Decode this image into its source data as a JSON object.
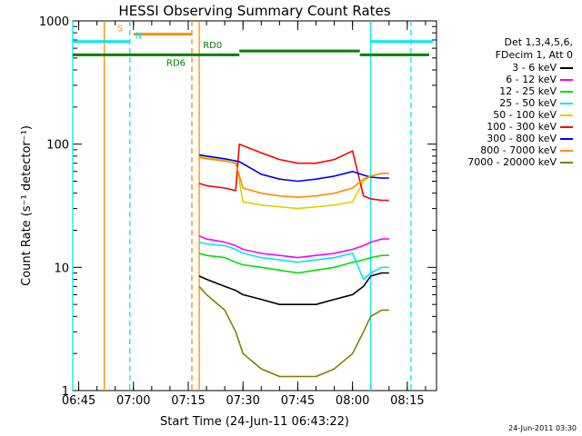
{
  "chart_data": {
    "type": "line",
    "title": "HESSI Observing Summary Count Rates",
    "xlabel": "Start Time (24-Jun-11 06:43:22)",
    "ylabel": "Count Rate (s⁻¹ detector⁻¹)",
    "y_scale": "log",
    "ylim": [
      1,
      1000
    ],
    "y_ticks": [
      {
        "value": 1,
        "label": "1"
      },
      {
        "value": 10,
        "label": "10"
      },
      {
        "value": 100,
        "label": "100"
      },
      {
        "value": 1000,
        "label": "1000"
      }
    ],
    "xlim": [
      "06:43:22",
      "08:23:00"
    ],
    "x_ticks": [
      "06:45",
      "07:00",
      "07:15",
      "07:30",
      "07:45",
      "08:00",
      "08:15"
    ],
    "grid": false,
    "legend_position": "right",
    "legend_header": [
      "Det 1,3,4,5,6,",
      "FDecim 1, Att 0"
    ],
    "series": [
      {
        "name": "3 - 6 keV",
        "color": "#000000",
        "x": [
          "07:18",
          "07:20",
          "07:25",
          "07:28",
          "07:30",
          "07:35",
          "07:40",
          "07:45",
          "07:50",
          "07:55",
          "08:00",
          "08:03",
          "08:05",
          "08:08",
          "08:10"
        ],
        "y": [
          8.5,
          8,
          7,
          6.5,
          6,
          5.5,
          5,
          5,
          5,
          5.5,
          6,
          7,
          8.5,
          9,
          9
        ]
      },
      {
        "name": "6 - 12 keV",
        "color": "#ff00ff",
        "x": [
          "07:18",
          "07:20",
          "07:25",
          "07:28",
          "07:30",
          "07:35",
          "07:40",
          "07:45",
          "07:50",
          "07:55",
          "08:00",
          "08:03",
          "08:05",
          "08:08",
          "08:10"
        ],
        "y": [
          18,
          17,
          16,
          15,
          14,
          13,
          12.5,
          12,
          12.5,
          13,
          14,
          15,
          16,
          17,
          17
        ]
      },
      {
        "name": "12 - 25 keV",
        "color": "#00e000",
        "x": [
          "07:18",
          "07:20",
          "07:25",
          "07:28",
          "07:30",
          "07:35",
          "07:40",
          "07:45",
          "07:50",
          "07:55",
          "08:00",
          "08:03",
          "08:05",
          "08:08",
          "08:10"
        ],
        "y": [
          13,
          12.5,
          12,
          11,
          10.5,
          10,
          9.5,
          9,
          9.5,
          10,
          11,
          11.5,
          12,
          12.5,
          12.5
        ]
      },
      {
        "name": "25 - 50 keV",
        "color": "#00e5ff",
        "x": [
          "07:18",
          "07:20",
          "07:25",
          "07:28",
          "07:30",
          "07:35",
          "07:40",
          "07:45",
          "07:50",
          "07:55",
          "08:00",
          "08:03",
          "08:05",
          "08:08",
          "08:10"
        ],
        "y": [
          16,
          15.5,
          15,
          14,
          13,
          12,
          11.5,
          11,
          11.5,
          12,
          13,
          8,
          9,
          10,
          10
        ]
      },
      {
        "name": "50 - 100 keV",
        "color": "#e0d000",
        "x": [
          "07:18",
          "07:20",
          "07:25",
          "07:28",
          "07:30",
          "07:35",
          "07:40",
          "07:45",
          "07:50",
          "07:55",
          "08:00",
          "08:03",
          "08:05",
          "08:08",
          "08:10"
        ],
        "y": [
          80,
          78,
          75,
          73,
          34,
          32,
          31,
          30,
          31,
          32,
          34,
          50,
          55,
          58,
          58
        ]
      },
      {
        "name": "100 - 300 keV",
        "color": "#ff0000",
        "x": [
          "07:18",
          "07:20",
          "07:25",
          "07:28",
          "07:29",
          "07:35",
          "07:40",
          "07:45",
          "07:50",
          "07:55",
          "08:00",
          "08:03",
          "08:05",
          "08:08",
          "08:10"
        ],
        "y": [
          48,
          46,
          44,
          42,
          100,
          85,
          75,
          70,
          70,
          75,
          88,
          38,
          36,
          35,
          35
        ]
      },
      {
        "name": "300 - 800 keV",
        "color": "#0000ff",
        "x": [
          "07:18",
          "07:20",
          "07:25",
          "07:28",
          "07:29",
          "07:35",
          "07:40",
          "07:45",
          "07:50",
          "07:55",
          "08:00",
          "08:03",
          "08:05",
          "08:08",
          "08:10"
        ],
        "y": [
          82,
          80,
          76,
          73,
          72,
          57,
          52,
          50,
          52,
          55,
          60,
          56,
          54,
          53,
          53
        ]
      },
      {
        "name": "800 - 7000 keV",
        "color": "#ff8c00",
        "x": [
          "07:18",
          "07:20",
          "07:25",
          "07:28",
          "07:30",
          "07:35",
          "07:40",
          "07:45",
          "07:50",
          "07:55",
          "08:00",
          "08:03",
          "08:05",
          "08:08",
          "08:10"
        ],
        "y": [
          78,
          76,
          73,
          70,
          44,
          40,
          38,
          37,
          38,
          40,
          44,
          52,
          55,
          58,
          58
        ]
      },
      {
        "name": "7000 - 20000 keV",
        "color": "#808000",
        "x": [
          "07:18",
          "07:20",
          "07:25",
          "07:28",
          "07:30",
          "07:35",
          "07:40",
          "07:45",
          "07:50",
          "07:55",
          "08:00",
          "08:03",
          "08:05",
          "08:08",
          "08:10"
        ],
        "y": [
          7,
          6,
          4.5,
          3,
          2,
          1.5,
          1.3,
          1.3,
          1.3,
          1.5,
          2,
          3,
          4,
          4.5,
          4.5
        ]
      }
    ],
    "annotations": [
      {
        "label": "S",
        "color": "#ff8c00",
        "segments": [
          [
            "07:00",
            "07:16"
          ]
        ],
        "y": 780
      },
      {
        "label": "N",
        "color": "#00e5ff",
        "segments": [
          [
            "06:43:22",
            "06:59"
          ],
          [
            "08:05",
            "08:22"
          ]
        ],
        "y": 680
      },
      {
        "label": "RD0",
        "color": "#008000",
        "segments": [
          [
            "07:29",
            "08:02"
          ]
        ],
        "y": 570
      },
      {
        "label": "RD6",
        "color": "#008000",
        "segments": [
          [
            "06:43:22",
            "07:16"
          ],
          [
            "07:16",
            "07:29"
          ],
          [
            "08:02",
            "08:21"
          ]
        ],
        "y": 530
      }
    ],
    "vertical_markers": [
      {
        "x": "06:43:22",
        "color": "#00e5ff",
        "style": "solid"
      },
      {
        "x": "06:52",
        "color": "#ff8c00",
        "style": "solid"
      },
      {
        "x": "06:59",
        "color": "#00e5ff",
        "style": "dashed"
      },
      {
        "x": "07:16",
        "color": "#ff8c00",
        "style": "dashed"
      },
      {
        "x": "07:18",
        "color": "#ff8c00",
        "style": "solid"
      },
      {
        "x": "08:05",
        "color": "#00e5ff",
        "style": "solid"
      },
      {
        "x": "08:16",
        "color": "#00e5ff",
        "style": "dashed"
      }
    ]
  },
  "footer": {
    "timestamp": "24-Jun-2011 03:30"
  }
}
